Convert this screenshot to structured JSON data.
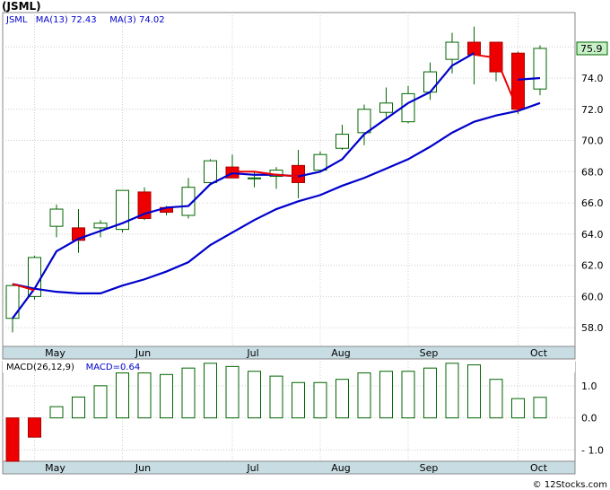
{
  "title": "(JSML)",
  "watermark": "© 12Stocks.com",
  "chart_data": [
    {
      "type": "candlestick",
      "symbol": "JSML",
      "legend": [
        {
          "label": "JSML",
          "value": "",
          "color": "#0000cc"
        },
        {
          "label": "MA(13)",
          "value": "72.43",
          "color": "#0000cc"
        },
        {
          "label": "MA(3)",
          "value": "74.02",
          "color": "#0000cc"
        }
      ],
      "last_price_label": "75.9",
      "ylim": [
        56.8,
        78.2
      ],
      "yticks": [
        "58.0",
        "60.0",
        "62.0",
        "64.0",
        "66.0",
        "68.0",
        "70.0",
        "72.0",
        "74.0",
        "76.0"
      ],
      "xtick_labels": [
        {
          "label": "May",
          "index": 1
        },
        {
          "label": "Jun",
          "index": 5
        },
        {
          "label": "Jul",
          "index": 10
        },
        {
          "label": "Aug",
          "index": 14
        },
        {
          "label": "Sep",
          "index": 18
        },
        {
          "label": "Oct",
          "index": 23
        }
      ],
      "candles": [
        {
          "o": 58.6,
          "h": 60.8,
          "l": 57.7,
          "c": 60.7
        },
        {
          "o": 60.0,
          "h": 62.6,
          "l": 59.8,
          "c": 62.5
        },
        {
          "o": 64.5,
          "h": 65.9,
          "l": 63.8,
          "c": 65.6
        },
        {
          "o": 64.4,
          "h": 65.6,
          "l": 62.8,
          "c": 63.6
        },
        {
          "o": 64.4,
          "h": 64.9,
          "l": 63.8,
          "c": 64.7
        },
        {
          "o": 64.3,
          "h": 66.8,
          "l": 64.1,
          "c": 66.8
        },
        {
          "o": 66.7,
          "h": 67.0,
          "l": 64.9,
          "c": 65.0
        },
        {
          "o": 65.7,
          "h": 65.8,
          "l": 65.2,
          "c": 65.4
        },
        {
          "o": 65.2,
          "h": 67.6,
          "l": 65.0,
          "c": 67.0
        },
        {
          "o": 67.3,
          "h": 68.8,
          "l": 67.2,
          "c": 68.7
        },
        {
          "o": 68.3,
          "h": 69.1,
          "l": 67.6,
          "c": 67.6
        },
        {
          "o": 67.6,
          "h": 68.0,
          "l": 67.0,
          "c": 67.6
        },
        {
          "o": 67.7,
          "h": 68.3,
          "l": 66.9,
          "c": 68.1
        },
        {
          "o": 68.4,
          "h": 69.4,
          "l": 66.3,
          "c": 67.3
        },
        {
          "o": 68.1,
          "h": 69.3,
          "l": 68.0,
          "c": 69.1
        },
        {
          "o": 69.5,
          "h": 71.0,
          "l": 69.4,
          "c": 70.4
        },
        {
          "o": 70.5,
          "h": 72.3,
          "l": 69.7,
          "c": 72.0
        },
        {
          "o": 71.8,
          "h": 73.4,
          "l": 71.5,
          "c": 72.4
        },
        {
          "o": 71.2,
          "h": 73.5,
          "l": 71.1,
          "c": 73.0
        },
        {
          "o": 73.1,
          "h": 75.0,
          "l": 72.6,
          "c": 74.4
        },
        {
          "o": 75.2,
          "h": 76.9,
          "l": 74.3,
          "c": 76.3
        },
        {
          "o": 76.3,
          "h": 77.3,
          "l": 73.6,
          "c": 75.5
        },
        {
          "o": 76.3,
          "h": 76.3,
          "l": 73.8,
          "c": 74.4
        },
        {
          "o": 75.6,
          "h": 75.7,
          "l": 71.7,
          "c": 72.0
        },
        {
          "o": 73.3,
          "h": 76.1,
          "l": 72.9,
          "c": 75.9
        }
      ],
      "ma13": [
        {
          "i": 0,
          "v": 58.6
        },
        {
          "i": 1,
          "v": 60.5
        },
        {
          "i": 2,
          "v": 62.9
        },
        {
          "i": 3,
          "v": 63.7
        },
        {
          "i": 4,
          "v": 64.2
        },
        {
          "i": 5,
          "v": 64.7
        },
        {
          "i": 6,
          "v": 65.3
        },
        {
          "i": 7,
          "v": 65.7
        },
        {
          "i": 8,
          "v": 65.8
        },
        {
          "i": 9,
          "v": 67.2
        },
        {
          "i": 10,
          "v": 67.9
        },
        {
          "i": 11,
          "v": 67.8
        },
        {
          "i": 12,
          "v": 67.8
        },
        {
          "i": 13,
          "v": 67.7
        },
        {
          "i": 14,
          "v": 68.0
        },
        {
          "i": 15,
          "v": 68.8
        },
        {
          "i": 16,
          "v": 70.4
        },
        {
          "i": 17,
          "v": 71.4
        },
        {
          "i": 18,
          "v": 72.4
        },
        {
          "i": 19,
          "v": 73.1
        },
        {
          "i": 20,
          "v": 74.8
        },
        {
          "i": 21,
          "v": 75.6
        }
      ],
      "ma3": [
        {
          "i": 0,
          "v": 60.8
        },
        {
          "i": 1,
          "v": 60.5
        },
        {
          "i": 2,
          "v": 60.3
        },
        {
          "i": 3,
          "v": 60.2
        },
        {
          "i": 4,
          "v": 60.2
        },
        {
          "i": 5,
          "v": 60.7
        },
        {
          "i": 6,
          "v": 61.1
        },
        {
          "i": 7,
          "v": 61.6
        },
        {
          "i": 8,
          "v": 62.2
        },
        {
          "i": 9,
          "v": 63.3
        },
        {
          "i": 10,
          "v": 64.1
        },
        {
          "i": 11,
          "v": 64.9
        },
        {
          "i": 12,
          "v": 65.6
        },
        {
          "i": 13,
          "v": 66.1
        },
        {
          "i": 14,
          "v": 66.5
        },
        {
          "i": 15,
          "v": 67.1
        },
        {
          "i": 16,
          "v": 67.6
        },
        {
          "i": 17,
          "v": 68.2
        },
        {
          "i": 18,
          "v": 68.8
        },
        {
          "i": 19,
          "v": 69.6
        },
        {
          "i": 20,
          "v": 70.5
        },
        {
          "i": 21,
          "v": 71.2
        },
        {
          "i": 22,
          "v": 71.6
        },
        {
          "i": 23,
          "v": 71.9
        },
        {
          "i": 24,
          "v": 72.4
        }
      ],
      "ma3_red_segments": [
        [
          {
            "i": 0,
            "v": 60.8
          },
          {
            "i": 1,
            "v": 60.4
          }
        ],
        [
          {
            "i": 10,
            "v": 68.0
          },
          {
            "i": 11,
            "v": 68.0
          },
          {
            "i": 12,
            "v": 67.8
          },
          {
            "i": 13,
            "v": 67.7
          }
        ],
        [
          {
            "i": 21,
            "v": 75.5
          },
          {
            "i": 22,
            "v": 75.3
          },
          {
            "i": 23,
            "v": 71.9
          }
        ]
      ],
      "ma13_tail": [
        {
          "i": 23,
          "v": 73.9
        },
        {
          "i": 24,
          "v": 74.0
        }
      ]
    },
    {
      "type": "bar",
      "legend": [
        {
          "label": "MACD(26,12,9)",
          "color": "#000000"
        },
        {
          "label": "MACD=0.64",
          "color": "#0000cc"
        }
      ],
      "ylim": [
        -1.35,
        1.75
      ],
      "yticks": [
        "1.0",
        "0.0",
        "- 1.0"
      ],
      "ytick_values": [
        1.0,
        0.0,
        -1.0
      ],
      "values": [
        -1.35,
        -0.6,
        0.35,
        0.65,
        1.0,
        1.4,
        1.4,
        1.35,
        1.55,
        1.7,
        1.6,
        1.45,
        1.3,
        1.1,
        1.1,
        1.2,
        1.4,
        1.45,
        1.45,
        1.55,
        1.7,
        1.65,
        1.2,
        0.6,
        0.64
      ]
    }
  ]
}
